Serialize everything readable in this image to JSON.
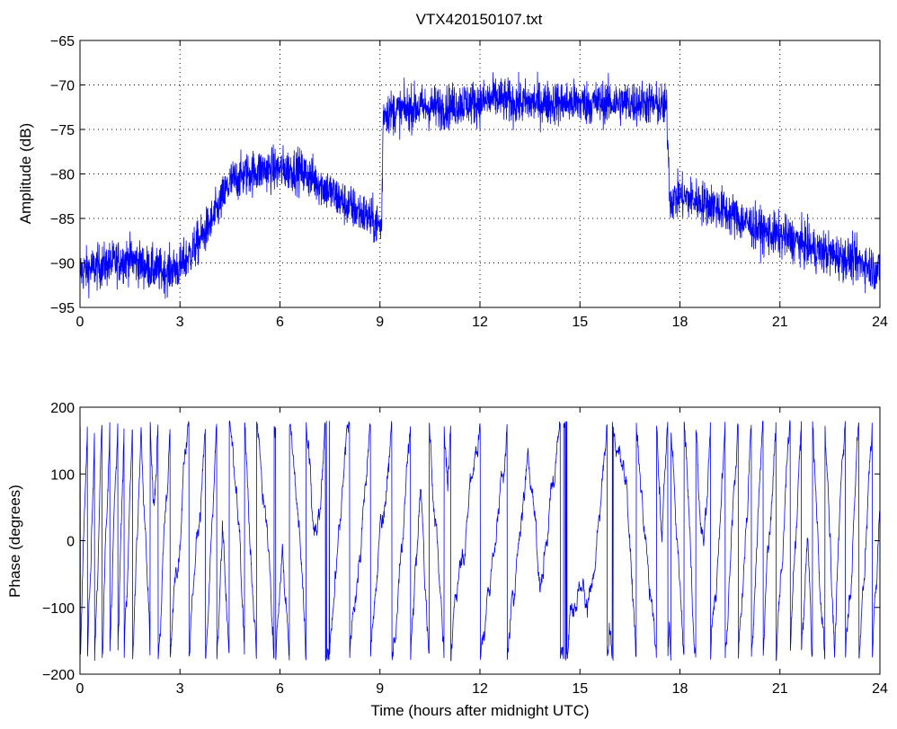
{
  "figure": {
    "title": "VTX420150107.txt",
    "background": "#ffffff",
    "series_color": "#0000ff"
  },
  "chart_data": [
    {
      "type": "line",
      "title": "VTX420150107.txt",
      "xlabel": "",
      "ylabel": "Amplitude (dB)",
      "xlim": [
        0,
        24
      ],
      "ylim": [
        -95,
        -65
      ],
      "xticks": [
        "0",
        "3",
        "6",
        "9",
        "12",
        "15",
        "18",
        "21",
        "24"
      ],
      "yticks": [
        "−95",
        "−90",
        "−85",
        "−80",
        "−75",
        "−70",
        "−65"
      ],
      "grid": true,
      "x": [
        0,
        0.5,
        1,
        1.5,
        2,
        2.5,
        3,
        3.5,
        4,
        4.5,
        5,
        5.5,
        6,
        6.5,
        7,
        7.5,
        8,
        8.5,
        9.05,
        9.1,
        9.5,
        10,
        10.5,
        11,
        11.5,
        12,
        12.5,
        13,
        13.5,
        14,
        14.5,
        15,
        15.5,
        16,
        16.5,
        17,
        17.6,
        17.7,
        18,
        18.5,
        19,
        19.5,
        20,
        20.5,
        21,
        21.5,
        22,
        22.5,
        23,
        23.5,
        24
      ],
      "series": [
        {
          "values": [
            -91,
            -90.5,
            -90,
            -89.5,
            -90.5,
            -91,
            -90.5,
            -88,
            -85,
            -81,
            -80,
            -79.5,
            -79.5,
            -79.5,
            -80.5,
            -82,
            -83.5,
            -84.5,
            -86,
            -73,
            -73,
            -72.5,
            -72.5,
            -72.5,
            -72,
            -72,
            -71.5,
            -72,
            -72,
            -72,
            -72,
            -72,
            -72,
            -72,
            -72,
            -72,
            -72.5,
            -83,
            -82.5,
            -83,
            -83.5,
            -84.5,
            -85.5,
            -86.5,
            -87,
            -87.5,
            -88.5,
            -89,
            -89.5,
            -90,
            -91
          ],
          "noise": 3.5
        }
      ]
    },
    {
      "type": "line",
      "title": "",
      "xlabel": "Time (hours after midnight UTC)",
      "ylabel": "Phase (degrees)",
      "xlim": [
        0,
        24
      ],
      "ylim": [
        -200,
        200
      ],
      "xticks": [
        "0",
        "3",
        "6",
        "9",
        "12",
        "15",
        "18",
        "21",
        "24"
      ],
      "yticks": [
        "−200",
        "−100",
        "0",
        "100",
        "200"
      ],
      "grid": false,
      "wrap_range": [
        -180,
        180
      ],
      "x": [
        0,
        1.5,
        3,
        4.5,
        6,
        7.5,
        9,
        10.5,
        12,
        13.5,
        15,
        16.5,
        18,
        19.5,
        21,
        22.5,
        24
      ],
      "series": [
        {
          "phase_rate_deg_per_hour": [
            1800,
            1600,
            700,
            900,
            600,
            700,
            500,
            900,
            450,
            600,
            150,
            500,
            900,
            1000,
            900,
            1100,
            1000
          ],
          "noise": 40
        }
      ]
    }
  ]
}
